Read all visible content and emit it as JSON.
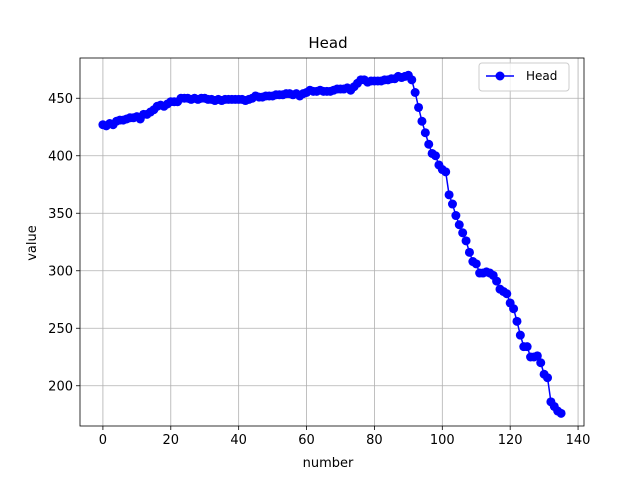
{
  "chart_data": {
    "type": "line",
    "title": "Head",
    "xlabel": "number",
    "ylabel": "value",
    "xlim": [
      -6.75,
      141.75
    ],
    "ylim": [
      165,
      485
    ],
    "xticks": [
      0,
      20,
      40,
      60,
      80,
      100,
      120,
      140
    ],
    "yticks": [
      200,
      250,
      300,
      350,
      400,
      450
    ],
    "grid": true,
    "legend": {
      "position": "upper-right"
    },
    "series": [
      {
        "name": "Head",
        "color": "#0000ff",
        "marker": "circle",
        "x": [
          0,
          1,
          2,
          3,
          4,
          5,
          6,
          7,
          8,
          9,
          10,
          11,
          12,
          13,
          14,
          15,
          16,
          17,
          18,
          19,
          20,
          21,
          22,
          23,
          24,
          25,
          26,
          27,
          28,
          29,
          30,
          31,
          32,
          33,
          34,
          35,
          36,
          37,
          38,
          39,
          40,
          41,
          42,
          43,
          44,
          45,
          46,
          47,
          48,
          49,
          50,
          51,
          52,
          53,
          54,
          55,
          56,
          57,
          58,
          59,
          60,
          61,
          62,
          63,
          64,
          65,
          66,
          67,
          68,
          69,
          70,
          71,
          72,
          73,
          74,
          75,
          76,
          77,
          78,
          79,
          80,
          81,
          82,
          83,
          84,
          85,
          86,
          87,
          88,
          89,
          90,
          91,
          92,
          93,
          94,
          95,
          96,
          97,
          98,
          99,
          100,
          101,
          102,
          103,
          104,
          105,
          106,
          107,
          108,
          109,
          110,
          111,
          112,
          113,
          114,
          115,
          116,
          117,
          118,
          119,
          120,
          121,
          122,
          123,
          124,
          125,
          126,
          127,
          128,
          129,
          130,
          131,
          132,
          133,
          134,
          135
        ],
        "y": [
          427,
          426,
          428,
          427,
          430,
          431,
          431,
          432,
          433,
          433,
          434,
          432,
          436,
          436,
          438,
          440,
          443,
          444,
          443,
          445,
          447,
          447,
          447,
          450,
          450,
          450,
          449,
          450,
          449,
          450,
          450,
          449,
          449,
          448,
          449,
          448,
          449,
          449,
          449,
          449,
          449,
          449,
          448,
          449,
          450,
          452,
          451,
          451,
          452,
          452,
          452,
          453,
          453,
          453,
          454,
          454,
          453,
          454,
          452,
          454,
          455,
          457,
          456,
          456,
          457,
          456,
          456,
          456,
          457,
          458,
          458,
          458,
          459,
          457,
          460,
          463,
          466,
          466,
          464,
          465,
          465,
          465,
          465,
          466,
          466,
          467,
          467,
          469,
          468,
          469,
          470,
          466,
          455,
          442,
          430,
          420,
          410,
          402,
          400,
          392,
          388,
          386,
          366,
          358,
          348,
          340,
          333,
          326,
          316,
          308,
          306,
          298,
          298,
          299,
          298,
          296,
          291,
          284,
          282,
          280,
          272,
          267,
          256,
          244,
          234,
          234,
          225,
          225,
          226,
          220,
          210,
          207,
          186,
          182,
          178,
          176
        ]
      }
    ]
  }
}
